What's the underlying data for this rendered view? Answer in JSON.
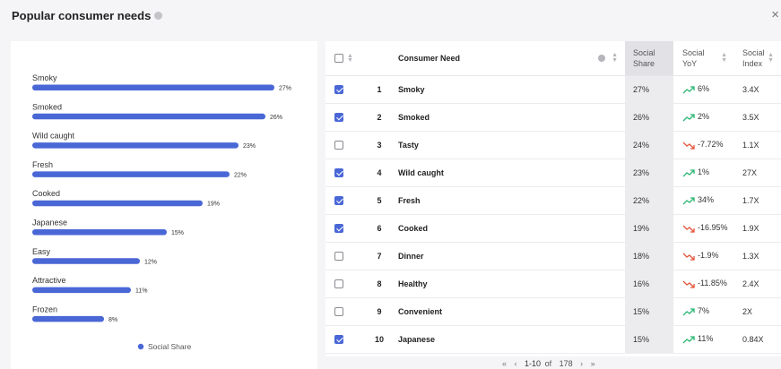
{
  "header": {
    "title": "Popular consumer needs",
    "close_label": "×"
  },
  "chart_data": {
    "type": "bar",
    "orientation": "horizontal",
    "categories": [
      "Smoky",
      "Smoked",
      "Wild caught",
      "Fresh",
      "Cooked",
      "Japanese",
      "Easy",
      "Attractive",
      "Frozen"
    ],
    "series": [
      {
        "name": "Social Share",
        "values": [
          27,
          26,
          23,
          22,
          19,
          15,
          12,
          11,
          8
        ]
      }
    ],
    "data_labels": [
      "27%",
      "26%",
      "23%",
      "22%",
      "19%",
      "15%",
      "12%",
      "11%",
      "8%"
    ],
    "xlim": [
      0,
      27
    ],
    "legend": "bottom",
    "legend_label": "Social Share",
    "bar_color": "#4a67d6"
  },
  "table": {
    "headers": {
      "need": "Consumer Need",
      "share_1": "Social",
      "share_2": "Share",
      "yoy_1": "Social",
      "yoy_2": "YoY",
      "index_1": "Social",
      "index_2": "Index"
    },
    "rows": [
      {
        "checked": true,
        "rank": "1",
        "need": "Smoky",
        "share": "27%",
        "yoy": "6%",
        "trend": "up",
        "index": "3.4X"
      },
      {
        "checked": true,
        "rank": "2",
        "need": "Smoked",
        "share": "26%",
        "yoy": "2%",
        "trend": "up",
        "index": "3.5X"
      },
      {
        "checked": false,
        "rank": "3",
        "need": "Tasty",
        "share": "24%",
        "yoy": "-7.72%",
        "trend": "down",
        "index": "1.1X"
      },
      {
        "checked": true,
        "rank": "4",
        "need": "Wild caught",
        "share": "23%",
        "yoy": "1%",
        "trend": "up",
        "index": "27X"
      },
      {
        "checked": true,
        "rank": "5",
        "need": "Fresh",
        "share": "22%",
        "yoy": "34%",
        "trend": "up",
        "index": "1.7X"
      },
      {
        "checked": true,
        "rank": "6",
        "need": "Cooked",
        "share": "19%",
        "yoy": "-16.95%",
        "trend": "down",
        "index": "1.9X"
      },
      {
        "checked": false,
        "rank": "7",
        "need": "Dinner",
        "share": "18%",
        "yoy": "-1.9%",
        "trend": "down",
        "index": "1.3X"
      },
      {
        "checked": false,
        "rank": "8",
        "need": "Healthy",
        "share": "16%",
        "yoy": "-11.85%",
        "trend": "down",
        "index": "2.4X"
      },
      {
        "checked": false,
        "rank": "9",
        "need": "Convenient",
        "share": "15%",
        "yoy": "7%",
        "trend": "up",
        "index": "2X"
      },
      {
        "checked": true,
        "rank": "10",
        "need": "Japanese",
        "share": "15%",
        "yoy": "11%",
        "trend": "up",
        "index": "0.84X"
      }
    ]
  },
  "pagination": {
    "first": "«",
    "prev": "‹",
    "range": "1-10",
    "of_label": "of",
    "total": "178",
    "next": "›",
    "last": "»"
  },
  "colors": {
    "up": "#2bb673",
    "down": "#e5553b",
    "accent": "#4a67d6"
  }
}
